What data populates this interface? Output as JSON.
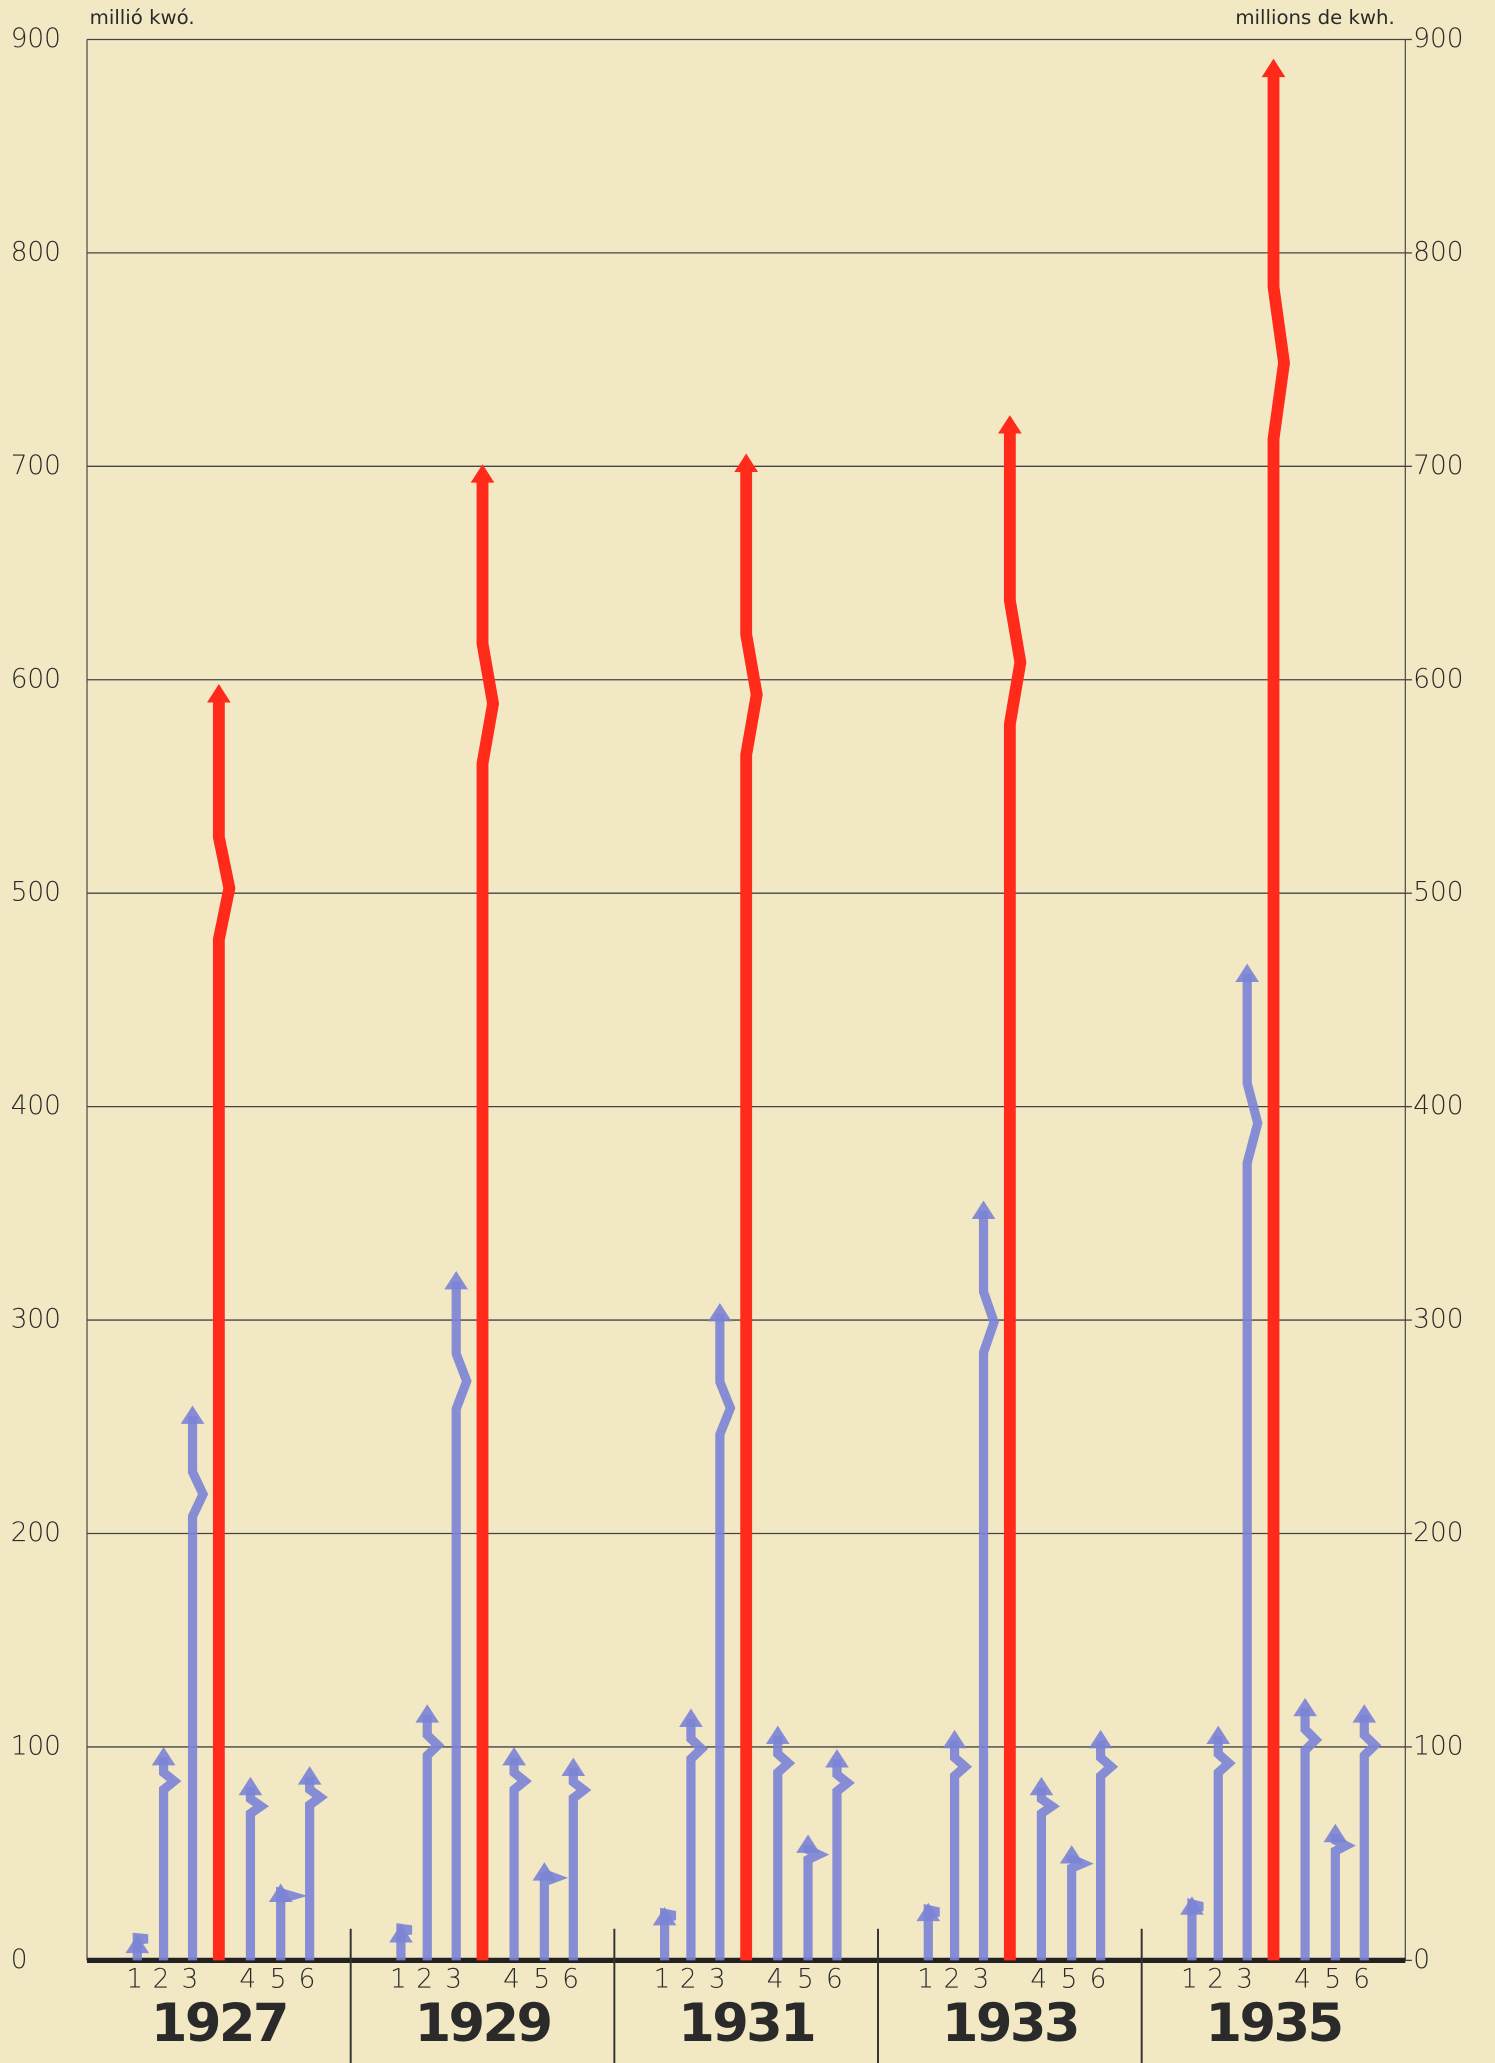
{
  "chart_data": {
    "type": "arrow",
    "y_label": "millió kwó.",
    "y2_label": "millions de kwh.",
    "categories": [
      "1927",
      "1929",
      "1931",
      "1933",
      "1935"
    ],
    "series": [
      {
        "name": "1",
        "color": "#7b83d6",
        "values": [
          12,
          17,
          25,
          27,
          30
        ]
      },
      {
        "name": "2",
        "color": "#7b83d6",
        "values": [
          100,
          120,
          118,
          108,
          110
        ]
      },
      {
        "name": "3",
        "color": "#7b83d6",
        "values": [
          260,
          323,
          308,
          356,
          467
        ]
      },
      {
        "name": null,
        "color": "#ff2a1a",
        "values": [
          598,
          701,
          706,
          724,
          891
        ]
      },
      {
        "name": "4",
        "color": "#7b83d6",
        "values": [
          86,
          100,
          110,
          86,
          123
        ]
      },
      {
        "name": "5",
        "color": "#7b83d6",
        "values": [
          36,
          46,
          59,
          54,
          64
        ]
      },
      {
        "name": "6",
        "color": "#7b83d6",
        "values": [
          91,
          95,
          99,
          108,
          120
        ]
      }
    ],
    "ylim": [
      0,
      900
    ],
    "yticks": [
      0,
      100,
      200,
      300,
      400,
      500,
      600,
      700,
      800,
      900
    ],
    "y2lim": [
      0,
      900
    ],
    "y2ticks": [
      0,
      100,
      200,
      300,
      400,
      500,
      600,
      700,
      800,
      900
    ],
    "grid": true
  }
}
